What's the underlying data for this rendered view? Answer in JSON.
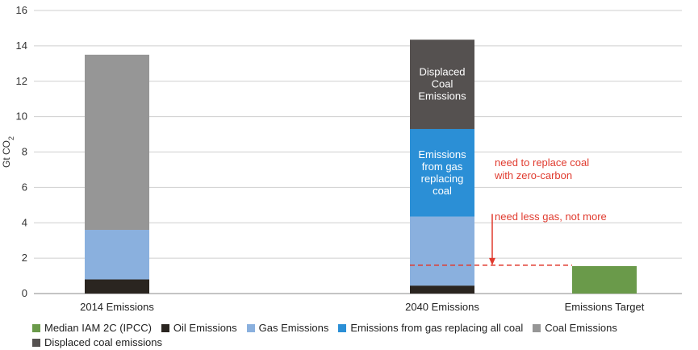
{
  "chart_data": {
    "type": "bar",
    "stacked": true,
    "ylabel": "Gt CO2",
    "ylim": [
      0,
      16
    ],
    "yticks": [
      0,
      2,
      4,
      6,
      8,
      10,
      12,
      14,
      16
    ],
    "grid": true,
    "legend_position": "bottom",
    "categories": [
      "2014 Emissions",
      "2040 Emissions",
      "Emissions Target"
    ],
    "series": [
      {
        "name": "Median IAM 2C (IPCC)",
        "color": "#6a9a4a",
        "values": [
          0,
          0,
          1.55
        ]
      },
      {
        "name": "Oil Emissions",
        "color": "#2a2520",
        "values": [
          0.8,
          0.45,
          0
        ]
      },
      {
        "name": "Gas Emissions",
        "color": "#8ab0de",
        "values": [
          2.8,
          3.9,
          0
        ]
      },
      {
        "name": "Emissions from gas replacing all coal",
        "color": "#2b8fd6",
        "values": [
          0,
          4.95,
          0
        ]
      },
      {
        "name": "Coal Emissions",
        "color": "#969696",
        "values": [
          9.9,
          0,
          0
        ]
      },
      {
        "name": "Displaced coal emissions",
        "color": "#555150",
        "values": [
          0,
          5.05,
          0
        ]
      }
    ],
    "bar_labels": [
      {
        "category": 1,
        "series": 3,
        "lines": [
          "Emissions",
          "from gas",
          "replacing",
          "coal"
        ]
      },
      {
        "category": 1,
        "series": 5,
        "lines": [
          "Displaced",
          "Coal",
          "Emissions"
        ]
      }
    ],
    "annotations": [
      {
        "lines": [
          "need to replace coal",
          "with zero-carbon"
        ],
        "y": 7.2
      },
      {
        "lines": [
          "need less gas, not more"
        ],
        "y": 4.15
      }
    ],
    "reference_line": {
      "y": 1.6,
      "color": "#e03a2e",
      "style": "dashed"
    },
    "arrow": {
      "from_y": 4.5,
      "to_y": 1.6,
      "color": "#e03a2e"
    }
  }
}
